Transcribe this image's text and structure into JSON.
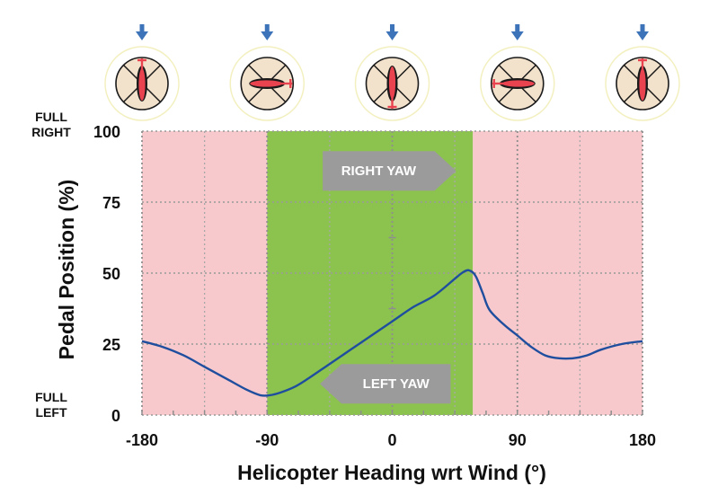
{
  "chart_data": {
    "type": "line",
    "title": "",
    "xlabel": "Helicopter Heading wrt Wind (°)",
    "ylabel": "Pedal Position (%)",
    "xlim": [
      -180,
      180
    ],
    "ylim": [
      0,
      100
    ],
    "x_ticks": [
      "-180",
      "-90",
      "0",
      "90",
      "180"
    ],
    "y_ticks": [
      "0",
      "25",
      "50",
      "75",
      "100"
    ],
    "y_end_labels": {
      "top": [
        "FULL",
        "RIGHT"
      ],
      "bottom": [
        "FULL",
        "LEFT"
      ]
    },
    "grid": true,
    "regions": [
      {
        "from": -180,
        "to": -90,
        "color": "#f7c9cc"
      },
      {
        "from": -90,
        "to": 58,
        "color": "#8cc34f"
      },
      {
        "from": 58,
        "to": 180,
        "color": "#f7c9cc"
      }
    ],
    "annotations": [
      {
        "text": "RIGHT YAW",
        "direction": "right",
        "x_from": -50,
        "x_to": 46,
        "y": 86
      },
      {
        "text": "LEFT YAW",
        "direction": "left",
        "x_from": -52,
        "x_to": 42,
        "y": 11
      }
    ],
    "series": [
      {
        "color": "#1f4e9e",
        "x": [
          -180,
          -165,
          -150,
          -135,
          -120,
          -105,
          -95,
          -88,
          -80,
          -70,
          -60,
          -45,
          -30,
          -15,
          0,
          15,
          30,
          45,
          50,
          55,
          60,
          65,
          70,
          80,
          90,
          100,
          110,
          120,
          130,
          140,
          150,
          165,
          180
        ],
        "y": [
          26,
          24,
          21,
          17,
          13,
          9,
          7,
          7,
          8,
          10,
          13,
          18,
          23,
          28,
          33,
          38,
          42,
          48,
          50,
          51,
          49,
          43,
          37,
          32,
          28,
          24,
          21,
          20,
          20,
          21,
          23,
          25,
          26
        ]
      }
    ],
    "headings": [
      {
        "x": -180,
        "angle": 0
      },
      {
        "x": -90,
        "angle": 90
      },
      {
        "x": 0,
        "angle": 180
      },
      {
        "x": 90,
        "angle": 270
      },
      {
        "x": 180,
        "angle": 0
      }
    ],
    "colors": {
      "wind_arrow": "#3d73b8",
      "helicopter": "#e8434f",
      "disc_fill": "#f2e1cb",
      "disc_ring": "#f3f0c0"
    },
    "icons": [
      "wind-arrow-icon",
      "helicopter-icon"
    ]
  }
}
